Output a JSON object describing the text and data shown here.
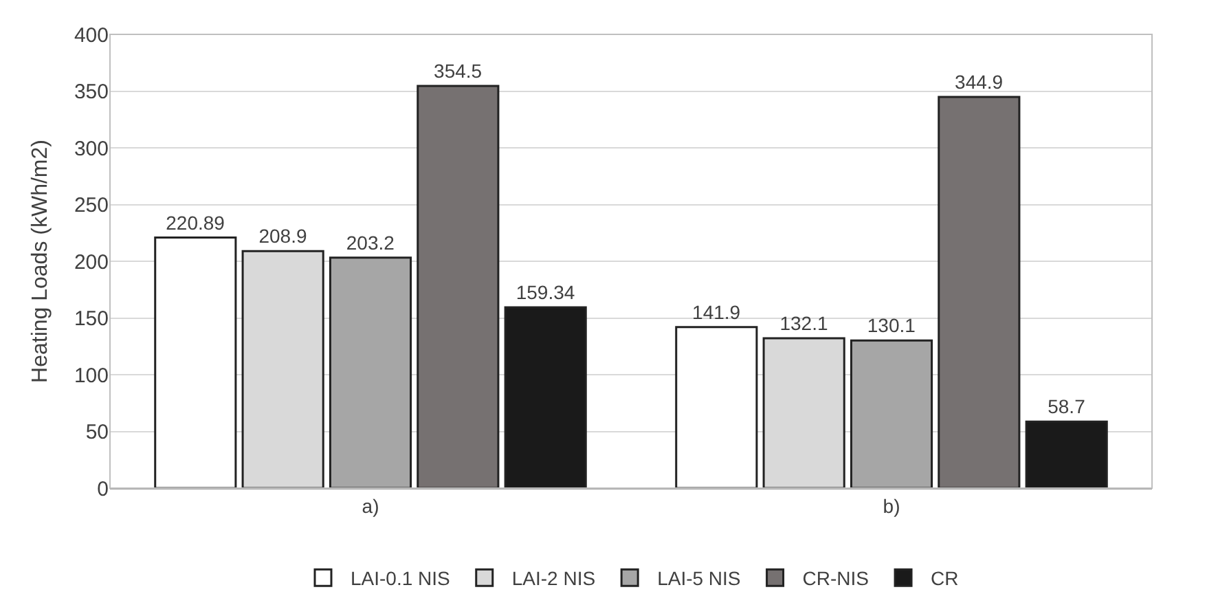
{
  "chart_data": {
    "type": "bar",
    "ylabel": "Heating Loads (kWh/m2)",
    "categories": [
      "a)",
      "b)"
    ],
    "series": [
      {
        "name": "LAI-0.1 NIS",
        "color": "#ffffff",
        "values": [
          220.89,
          141.9
        ]
      },
      {
        "name": "LAI-2 NIS",
        "color": "#d9d9d9",
        "values": [
          208.9,
          132.1
        ]
      },
      {
        "name": "LAI-5 NIS",
        "color": "#a6a6a6",
        "values": [
          203.2,
          130.1
        ]
      },
      {
        "name": "CR-NIS",
        "color": "#767171",
        "values": [
          354.5,
          344.9
        ]
      },
      {
        "name": "CR",
        "color": "#1a1a1a",
        "values": [
          159.34,
          58.7
        ]
      }
    ],
    "ylim": [
      0,
      400
    ],
    "yticks": [
      0,
      50,
      100,
      150,
      200,
      250,
      300,
      350,
      400
    ],
    "grid": "y",
    "legend": "bottom",
    "data_labels": true
  }
}
